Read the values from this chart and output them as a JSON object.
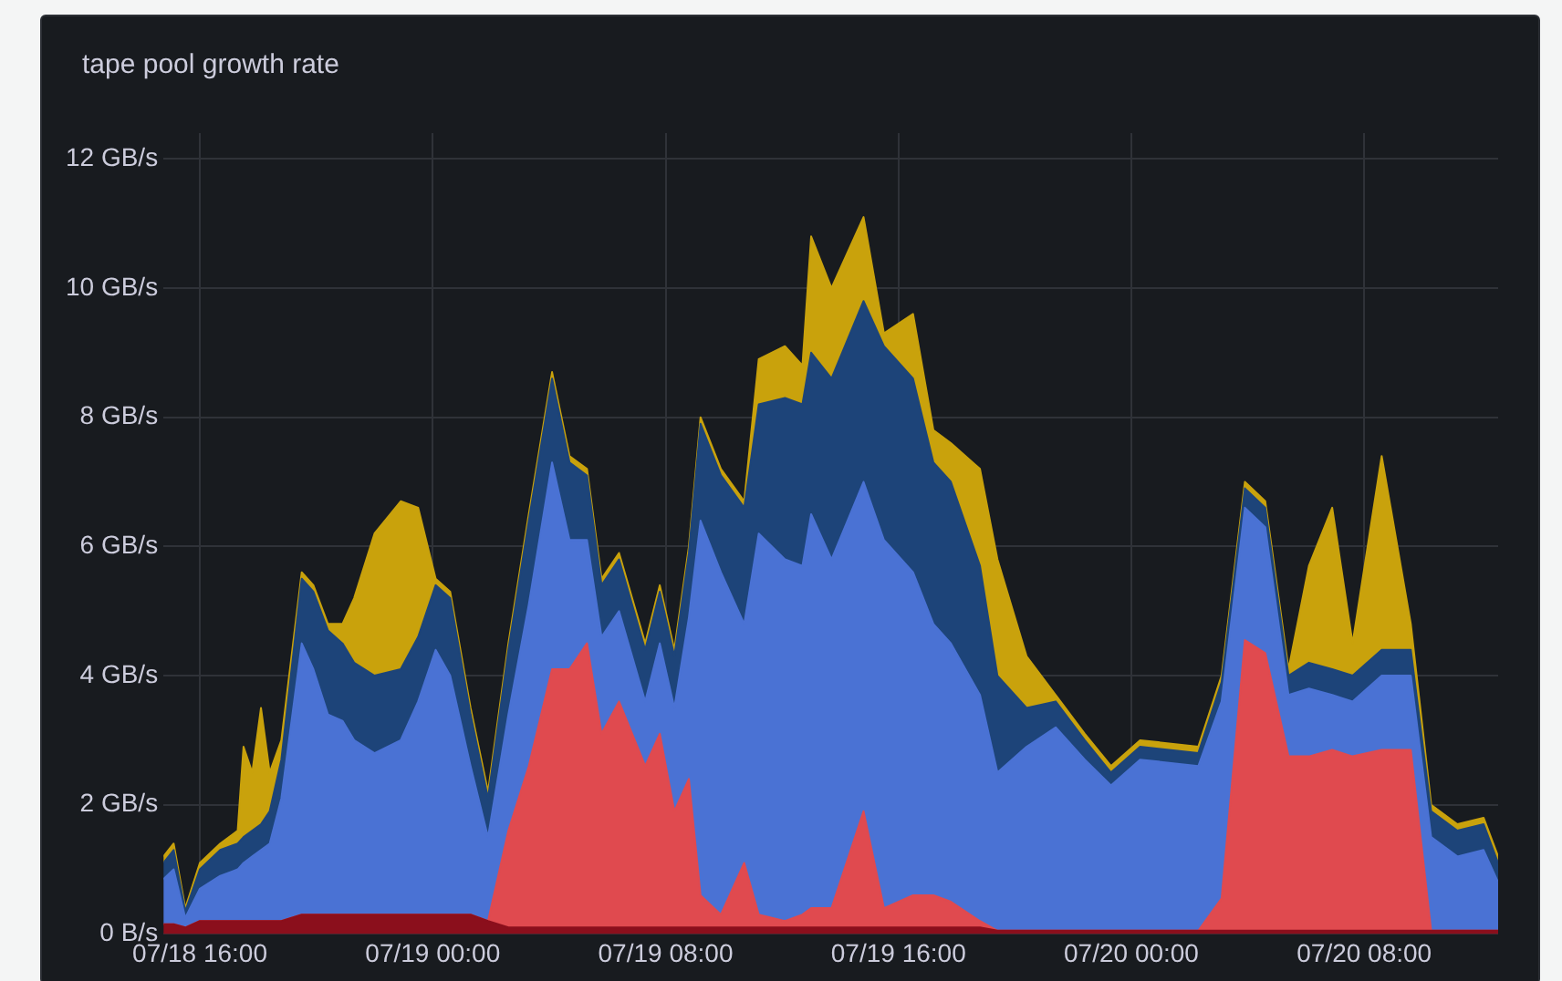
{
  "chart_data": {
    "type": "area",
    "title": "tape pool growth rate",
    "stacked": true,
    "grid": true,
    "legend": false,
    "marker": "none",
    "x": [
      "--07-18T14:45",
      "--07-18T15:06",
      "--07-18T15:30",
      "--07-18T16:00",
      "--07-18T16:42",
      "--07-18T17:18",
      "--07-18T17:30",
      "--07-18T17:48",
      "--07-18T18:06",
      "--07-18T18:24",
      "--07-18T18:48",
      "--07-18T19:30",
      "--07-18T19:54",
      "--07-18T20:24",
      "--07-18T20:54",
      "--07-18T21:18",
      "--07-18T22:00",
      "--07-18T22:54",
      "--07-18T23:30",
      "--07-19T00:06",
      "--07-19T00:36",
      "--07-19T01:18",
      "--07-19T01:54",
      "--07-19T02:36",
      "--07-19T03:18",
      "--07-19T04:06",
      "--07-19T04:42",
      "--07-19T05:18",
      "--07-19T05:48",
      "--07-19T06:24",
      "--07-19T07:18",
      "--07-19T07:48",
      "--07-19T08:18",
      "--07-19T08:48",
      "--07-19T09:12",
      "--07-19T09:54",
      "--07-19T10:42",
      "--07-19T11:12",
      "--07-19T12:06",
      "--07-19T12:42",
      "--07-19T13:00",
      "--07-19T13:42",
      "--07-19T14:48",
      "--07-19T15:30",
      "--07-19T16:30",
      "--07-19T17:12",
      "--07-19T17:48",
      "--07-19T18:48",
      "--07-19T19:24",
      "--07-19T20:24",
      "--07-19T21:24",
      "--07-19T22:24",
      "--07-19T23:18",
      "--07-20T00:18",
      "--07-20T02:18",
      "--07-20T03:06",
      "--07-20T03:54",
      "--07-20T04:36",
      "--07-20T05:24",
      "--07-20T06:06",
      "--07-20T06:54",
      "--07-20T07:36",
      "--07-20T08:36",
      "--07-20T09:36",
      "--07-20T10:18",
      "--07-20T11:12",
      "--07-20T12:06",
      "--07-20T12:36"
    ],
    "xlim": [
      "--07-18T14:45",
      "--07-20T12:36"
    ],
    "xticks": [
      {
        "value": "--07-18T16:00",
        "label": "07/18 16:00"
      },
      {
        "value": "--07-19T00:00",
        "label": "07/19 00:00"
      },
      {
        "value": "--07-19T08:00",
        "label": "07/19 08:00"
      },
      {
        "value": "--07-19T16:00",
        "label": "07/19 16:00"
      },
      {
        "value": "--07-20T00:00",
        "label": "07/20 00:00"
      },
      {
        "value": "--07-20T08:00",
        "label": "07/20 08:00"
      }
    ],
    "ylim": [
      0,
      12.4
    ],
    "yticks": [
      {
        "value": 0,
        "label": "0 B/s"
      },
      {
        "value": 2,
        "label": "2 GB/s"
      },
      {
        "value": 4,
        "label": "4 GB/s"
      },
      {
        "value": 6,
        "label": "6 GB/s"
      },
      {
        "value": 8,
        "label": "8 GB/s"
      },
      {
        "value": 10,
        "label": "10 GB/s"
      },
      {
        "value": 12,
        "label": "12 GB/s"
      }
    ],
    "series": [
      {
        "color": "#8b0f1c",
        "values": [
          0.15,
          0.15,
          0.1,
          0.2,
          0.2,
          0.2,
          0.2,
          0.2,
          0.2,
          0.2,
          0.2,
          0.3,
          0.3,
          0.3,
          0.3,
          0.3,
          0.3,
          0.3,
          0.3,
          0.3,
          0.3,
          0.3,
          0.2,
          0.1,
          0.1,
          0.1,
          0.1,
          0.1,
          0.1,
          0.1,
          0.1,
          0.1,
          0.1,
          0.1,
          0.1,
          0.1,
          0.1,
          0.1,
          0.1,
          0.1,
          0.1,
          0.1,
          0.1,
          0.1,
          0.1,
          0.1,
          0.1,
          0.1,
          0.05,
          0.05,
          0.05,
          0.05,
          0.05,
          0.05,
          0.05,
          0.05,
          0.05,
          0.05,
          0.05,
          0.05,
          0.05,
          0.05,
          0.05,
          0.05,
          0.05,
          0.05,
          0.05,
          0.05
        ]
      },
      {
        "color": "#e04a4f",
        "values": [
          0,
          0,
          0,
          0,
          0,
          0,
          0,
          0,
          0,
          0,
          0,
          0,
          0,
          0,
          0,
          0,
          0,
          0,
          0,
          0,
          0,
          0,
          0,
          1.5,
          2.5,
          4.0,
          4.0,
          4.4,
          3.0,
          3.5,
          2.5,
          3.0,
          1.8,
          2.3,
          0.5,
          0.2,
          1.0,
          0.2,
          0.1,
          0.2,
          0.3,
          0.3,
          1.8,
          0.3,
          0.5,
          0.5,
          0.4,
          0.1,
          0,
          0,
          0,
          0,
          0,
          0,
          0,
          0.5,
          4.5,
          4.3,
          2.7,
          2.7,
          2.8,
          2.7,
          2.8,
          2.8,
          0,
          0,
          0,
          0
        ]
      },
      {
        "color": "#4a72d4",
        "values": [
          0.7,
          0.85,
          0.15,
          0.5,
          0.7,
          0.8,
          0.9,
          1.0,
          1.1,
          1.2,
          1.9,
          4.2,
          3.8,
          3.1,
          3.0,
          2.7,
          2.5,
          2.7,
          3.3,
          4.1,
          3.7,
          2.3,
          1.3,
          1.8,
          2.5,
          3.2,
          2.0,
          1.6,
          1.5,
          1.4,
          1.0,
          1.4,
          1.6,
          2.5,
          5.8,
          5.3,
          3.7,
          5.9,
          5.6,
          5.4,
          6.1,
          5.4,
          5.1,
          5.7,
          5.0,
          4.2,
          4.0,
          3.5,
          2.45,
          2.85,
          3.15,
          2.65,
          2.25,
          2.65,
          2.55,
          3.05,
          2.05,
          1.95,
          0.95,
          1.05,
          0.85,
          0.85,
          1.15,
          1.15,
          1.45,
          1.15,
          1.25,
          0.75
        ]
      },
      {
        "color": "#1d4479",
        "values": [
          0.25,
          0.3,
          0.1,
          0.3,
          0.4,
          0.4,
          0.4,
          0.4,
          0.4,
          0.5,
          0.6,
          1.0,
          1.2,
          1.3,
          1.2,
          1.2,
          1.2,
          1.1,
          1.0,
          1.0,
          1.2,
          0.8,
          0.6,
          1.0,
          1.3,
          1.3,
          1.2,
          1.0,
          0.8,
          0.8,
          0.8,
          0.8,
          0.8,
          1.0,
          1.5,
          1.5,
          1.8,
          2.0,
          2.5,
          2.5,
          2.5,
          2.8,
          2.8,
          3.0,
          3.0,
          2.5,
          2.5,
          2.0,
          1.5,
          0.6,
          0.4,
          0.3,
          0.2,
          0.2,
          0.2,
          0.3,
          0.3,
          0.3,
          0.3,
          0.4,
          0.4,
          0.4,
          0.4,
          0.4,
          0.4,
          0.4,
          0.4,
          0.3
        ]
      },
      {
        "color": "#c9a20c",
        "values": [
          0.1,
          0.1,
          0.05,
          0.1,
          0.1,
          0.2,
          1.4,
          0.9,
          1.8,
          0.6,
          0.3,
          0.1,
          0.1,
          0.1,
          0.3,
          1.0,
          2.2,
          2.6,
          2.0,
          0.1,
          0.1,
          0.1,
          0.1,
          0.1,
          0.1,
          0.1,
          0.1,
          0.1,
          0.1,
          0.1,
          0.1,
          0.1,
          0.1,
          0.1,
          0.1,
          0.1,
          0.1,
          0.7,
          0.8,
          0.6,
          1.8,
          1.4,
          1.3,
          0.2,
          1.0,
          0.5,
          0.6,
          1.5,
          1.8,
          0.8,
          0.1,
          0.1,
          0.1,
          0.1,
          0.1,
          0.1,
          0.1,
          0.1,
          0.1,
          1.5,
          2.5,
          0.5,
          3.0,
          0.4,
          0.1,
          0.1,
          0.1,
          0.1
        ]
      }
    ]
  }
}
